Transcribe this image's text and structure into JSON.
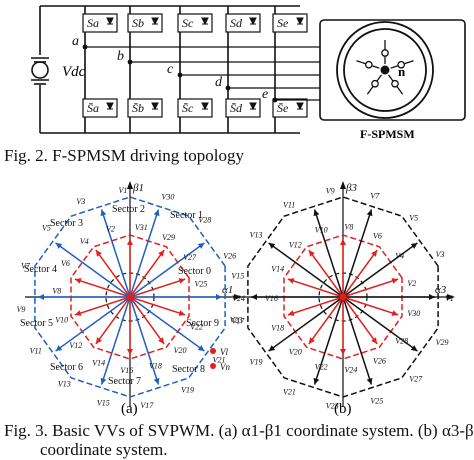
{
  "fig2": {
    "caption": "Fig. 2.   F-SPMSM driving topology",
    "vdc_label": "Vdc",
    "motor_label": "F-SPMSM",
    "center_label": "n",
    "phase_nodes": [
      "a",
      "b",
      "c",
      "d",
      "e"
    ],
    "upper_switches": [
      "Sa",
      "Sb",
      "Sc",
      "Sd",
      "Se"
    ],
    "lower_switches": [
      "S̄a",
      "S̄b",
      "S̄c",
      "S̄d",
      "S̄e"
    ]
  },
  "fig3": {
    "caption_line1": "Fig. 3.   Basic VVs of SVPWM. (a) α1-β1 coordinate system. (b) α3-β3",
    "caption_line2": "coordinate system.",
    "sub_a": "(a)",
    "sub_b": "(b)",
    "a": {
      "y_axis": "β1",
      "x_axis": "α1",
      "sectors": [
        "Sector 0",
        "Sector 1",
        "Sector 2",
        "Sector 3",
        "Sector 4",
        "Sector 5",
        "Sector 6",
        "Sector 7",
        "Sector 8",
        "Sector 9"
      ],
      "vector_labels": [
        "V24",
        "V25",
        "V26",
        "V27",
        "V28",
        "V29",
        "V30",
        "V31",
        "V1",
        "V2",
        "V3",
        "V4",
        "V5",
        "V6",
        "V7",
        "V8",
        "V9",
        "V10",
        "V11",
        "V12",
        "V13",
        "V14",
        "V15",
        "V16",
        "V17",
        "V18",
        "V19",
        "V20",
        "V21",
        "V22",
        "V23"
      ],
      "legend": [
        "Vl",
        "Vn"
      ]
    },
    "b": {
      "y_axis": "β3",
      "x_axis": "α3",
      "vector_labels": [
        "V1",
        "V2",
        "V3",
        "V4",
        "V5",
        "V6",
        "V7",
        "V8",
        "V9",
        "V10",
        "V11",
        "V12",
        "V13",
        "V14",
        "V15",
        "V16",
        "V17",
        "V18",
        "V19",
        "V20",
        "V21",
        "V22",
        "V23",
        "V24",
        "V25",
        "V26",
        "V27",
        "V28",
        "V29",
        "V30"
      ]
    },
    "colors": {
      "large": "#1f5fbf",
      "medium": "#e0201c",
      "black": "#111111",
      "dot": "#e0201c"
    }
  }
}
